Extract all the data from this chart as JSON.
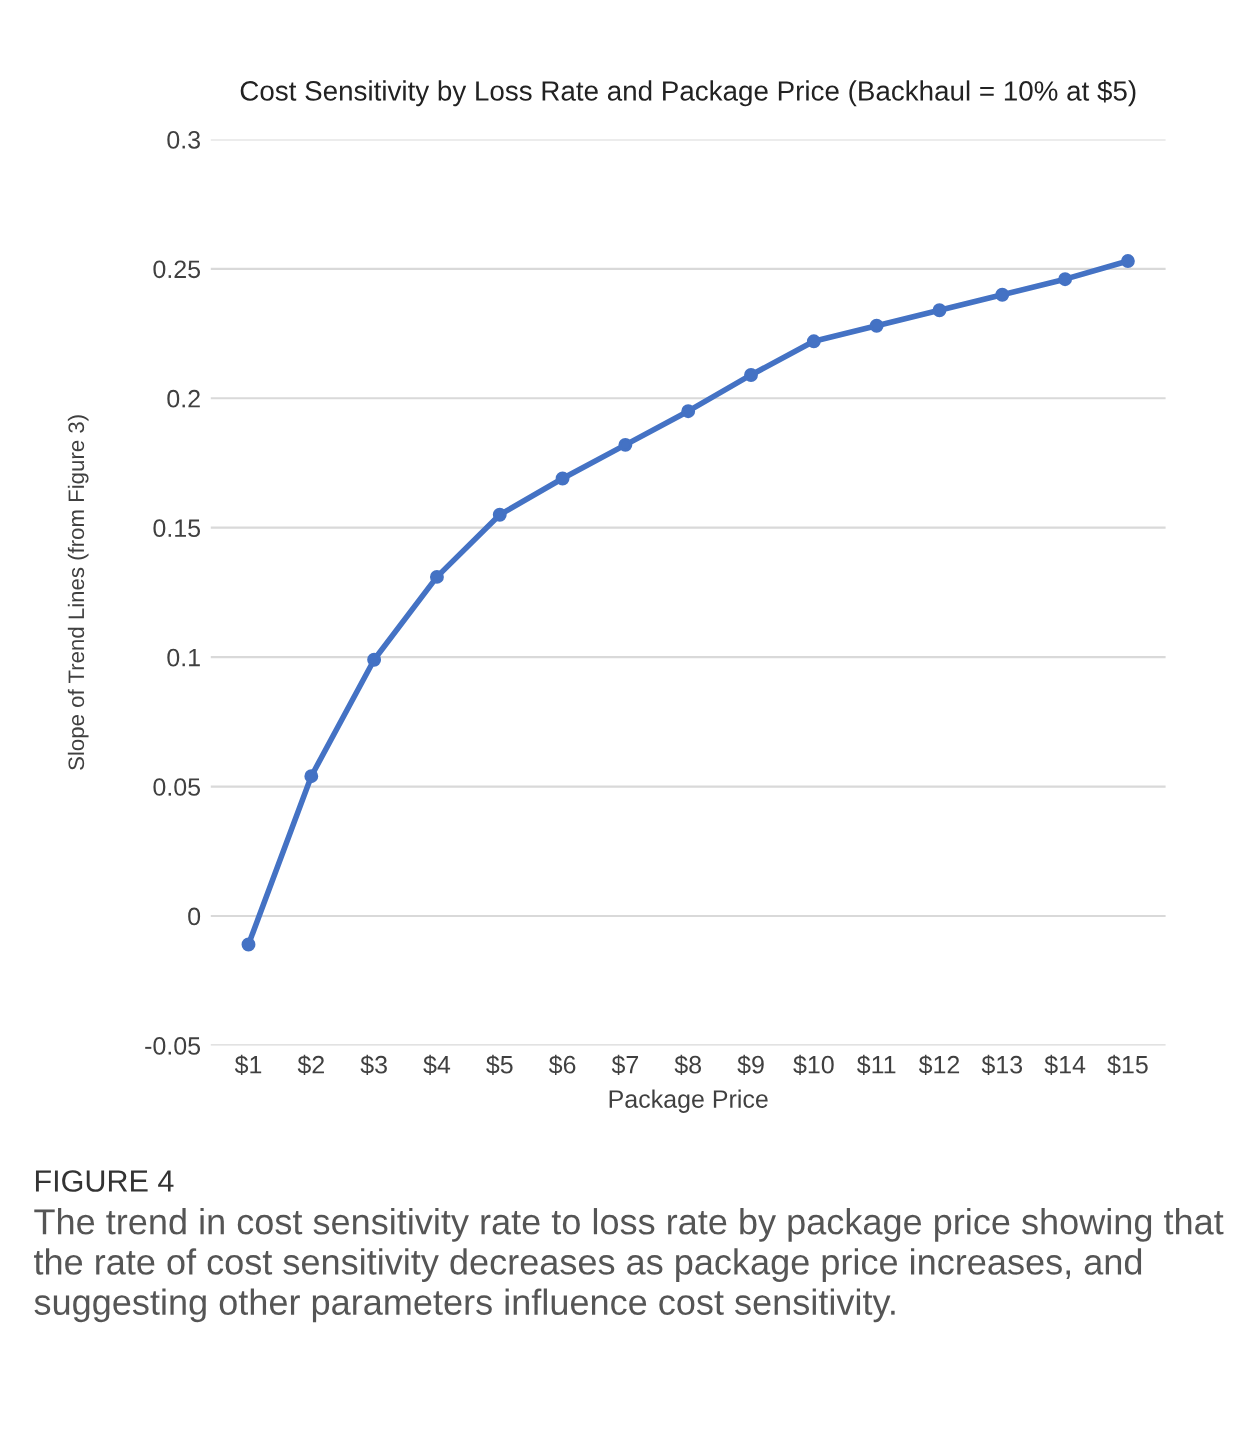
{
  "chart_data": {
    "type": "line",
    "title": "Cost Sensitivity by Loss Rate and Package Price (Backhaul = 10% at $5)",
    "xlabel": "Package Price",
    "ylabel": "Slope of Trend Lines (from Figure 3)",
    "categories": [
      "$1",
      "$2",
      "$3",
      "$4",
      "$5",
      "$6",
      "$7",
      "$8",
      "$9",
      "$10",
      "$11",
      "$12",
      "$13",
      "$14",
      "$15"
    ],
    "series": [
      {
        "color": "#4472c4",
        "values": [
          -0.011,
          0.054,
          0.099,
          0.131,
          0.155,
          0.169,
          0.182,
          0.195,
          0.209,
          0.222,
          0.228,
          0.234,
          0.24,
          0.246,
          0.253
        ]
      }
    ],
    "ylim": [
      -0.05,
      0.3
    ],
    "yticks": [
      {
        "value": -0.05,
        "label": "-0.05"
      },
      0,
      0.05,
      0.1,
      0.15,
      0.2,
      0.25,
      0.3
    ],
    "grid": "y",
    "marker": "circle",
    "line_style": "solid",
    "annotations": [
      "FIGURE 4",
      "The trend in cost sensitivity rate to loss rate by package price showing that the rate of cost sensitivity decreases as package price increases, and suggesting other parameters influence cost sensitivity."
    ]
  }
}
